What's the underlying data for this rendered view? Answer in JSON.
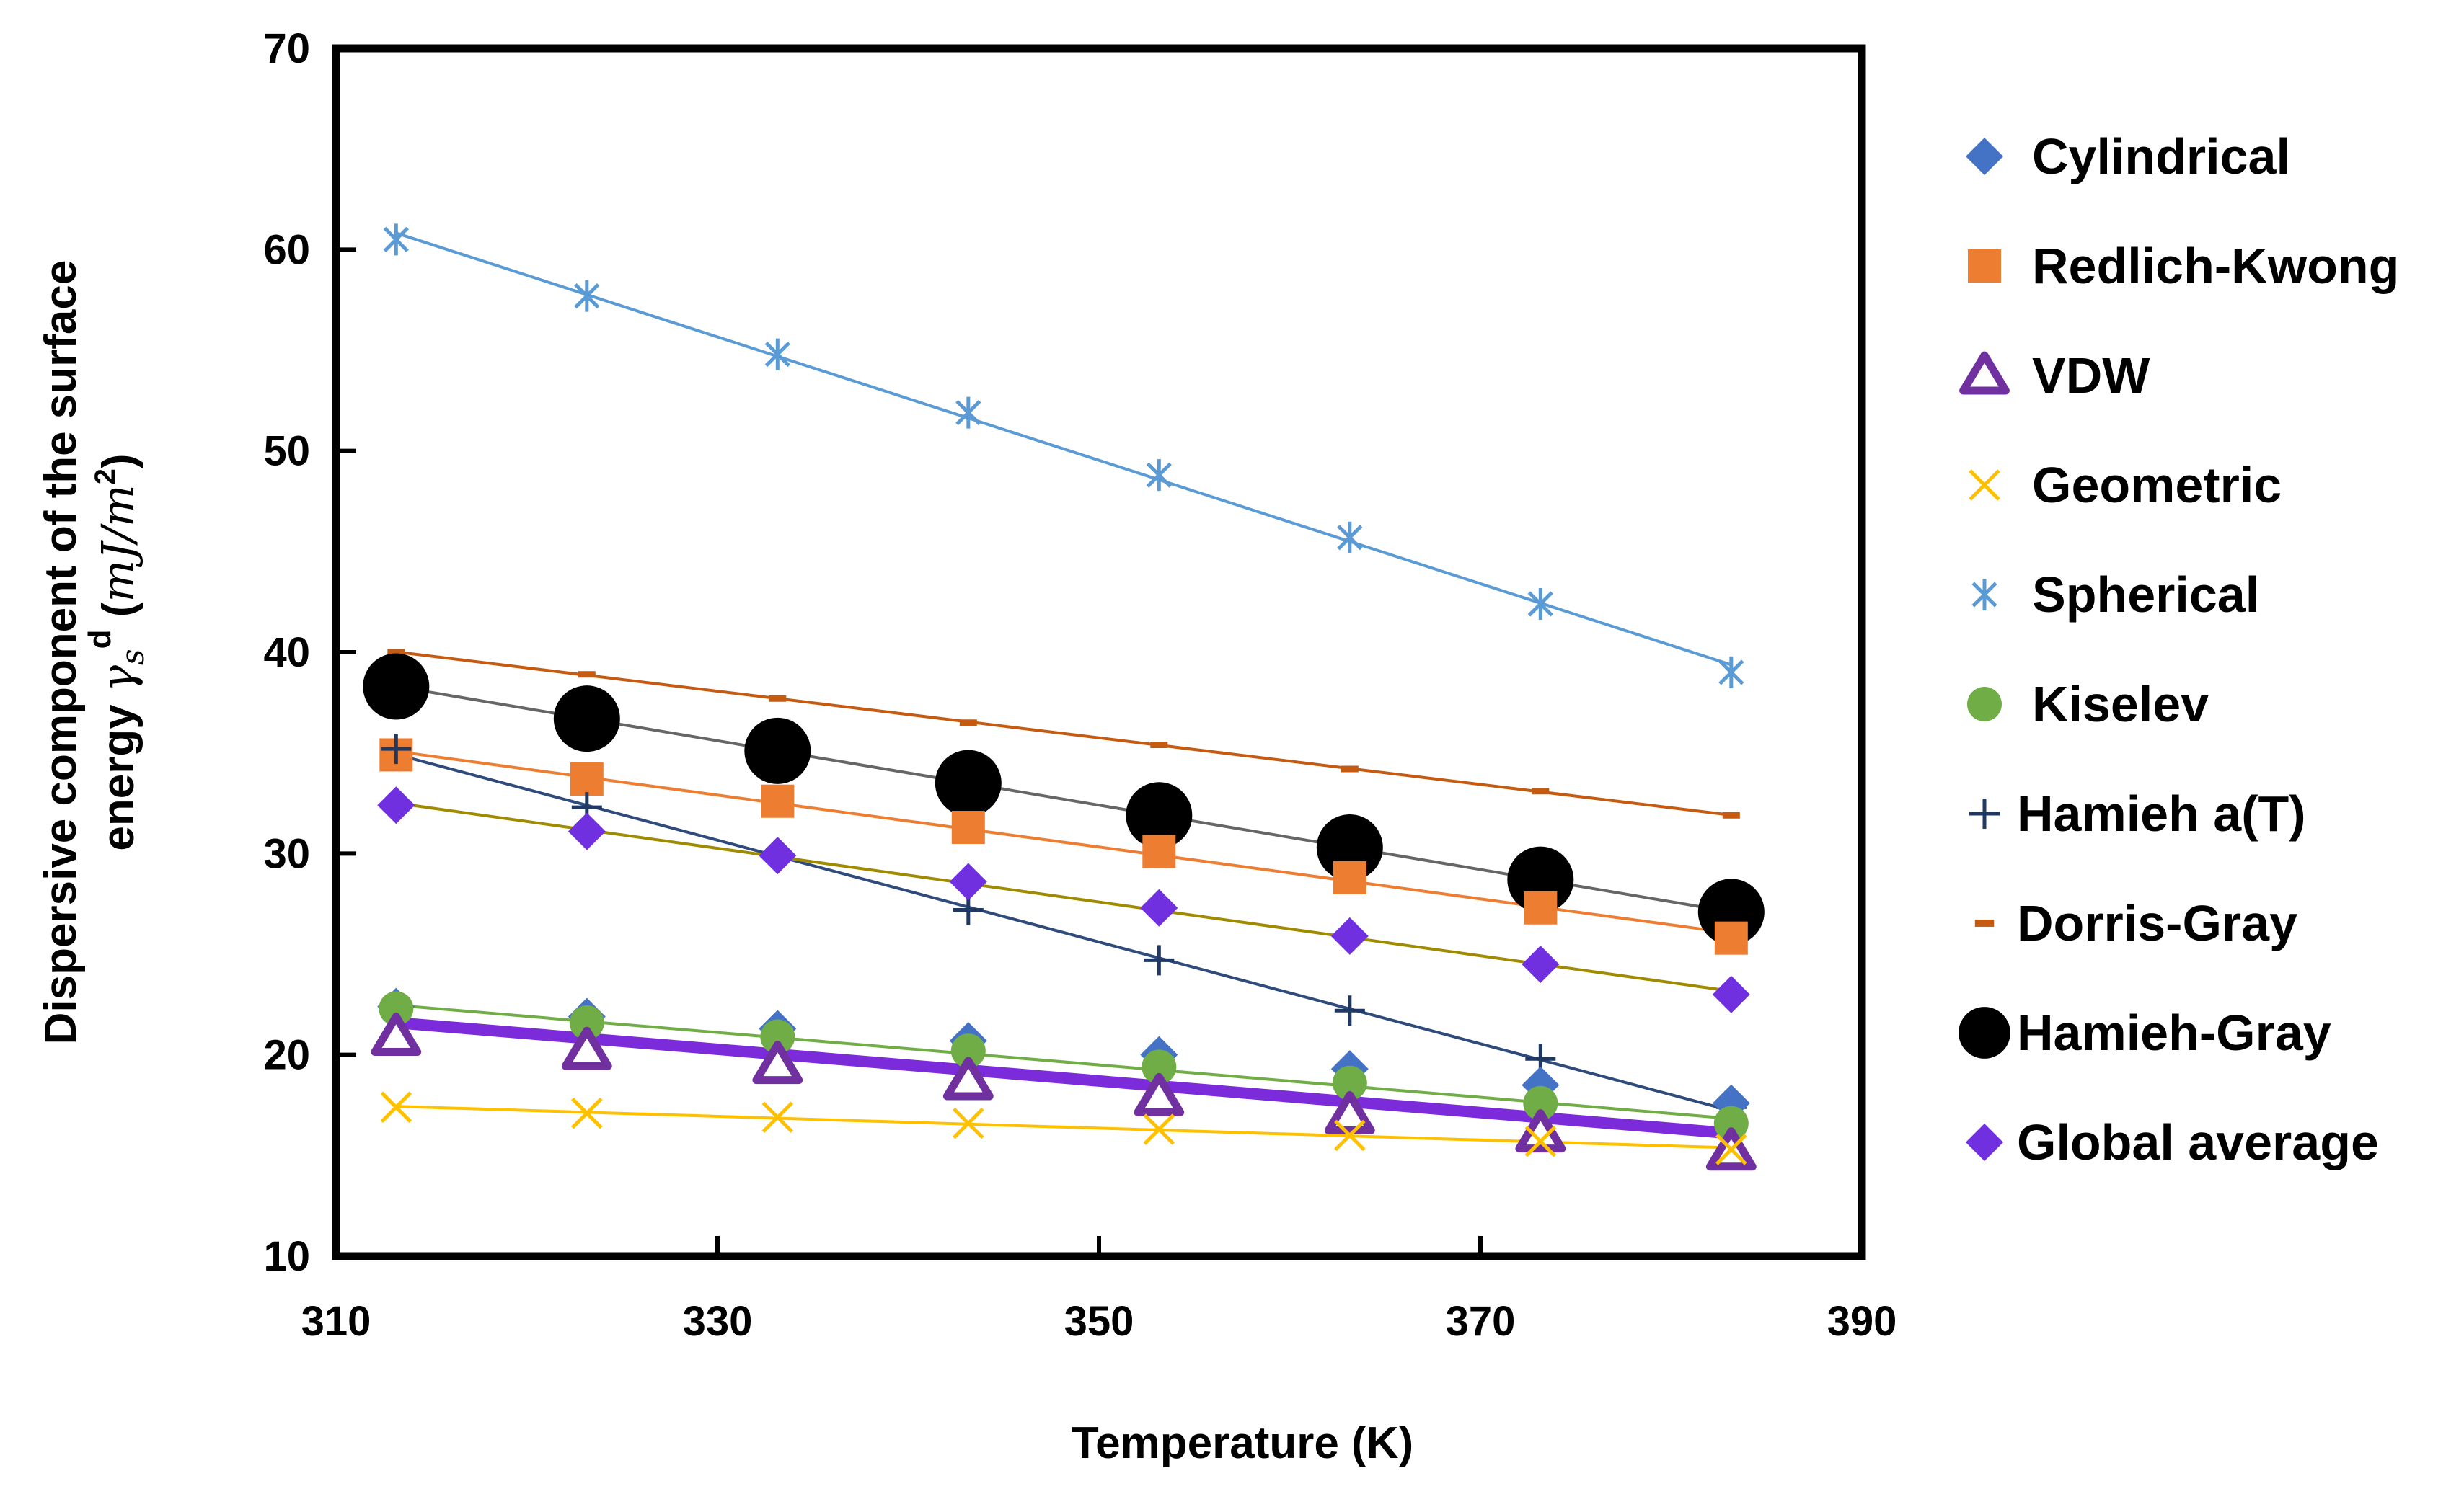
{
  "chart_data": {
    "type": "scatter",
    "xlabel": "Temperature (K)",
    "ylabel": {
      "line1": "Dispersive component of the surface",
      "line2_prefix": "energy ",
      "gamma": "γ",
      "sub": "s",
      "sup": "d",
      "unit_open": " (",
      "unit": "mJ/m",
      "unit_sup": "2",
      "unit_close": ")"
    },
    "xlim": [
      310,
      390
    ],
    "ylim": [
      10,
      70
    ],
    "xticks": [
      310,
      330,
      350,
      370,
      390
    ],
    "yticks": [
      10,
      20,
      30,
      40,
      50,
      60,
      70
    ],
    "x": [
      313.15,
      323.15,
      333.15,
      343.15,
      353.15,
      363.15,
      373.15,
      383.15
    ],
    "series": [
      {
        "name": "Cylindrical",
        "marker": "diamond",
        "color": "#4472C4",
        "values": [
          22.4,
          21.9,
          21.3,
          20.7,
          20.0,
          19.3,
          18.5,
          17.6
        ]
      },
      {
        "name": "Redlich-Kwong",
        "marker": "square",
        "color": "#ED7D31",
        "values": [
          34.9,
          33.7,
          32.6,
          31.3,
          30.1,
          28.8,
          27.3,
          25.8
        ],
        "trend_color": "#ED7D31"
      },
      {
        "name": "VDW",
        "marker": "triangle",
        "color": "#7030A0",
        "values": [
          20.9,
          20.2,
          19.5,
          18.7,
          17.9,
          17.0,
          16.1,
          15.2
        ],
        "trend_color": "#7B2BD9"
      },
      {
        "name": "Geometric",
        "marker": "x",
        "color": "#FFC000",
        "values": [
          17.4,
          17.1,
          16.9,
          16.6,
          16.3,
          16.0,
          15.7,
          15.3
        ],
        "trend_color": "#FFC000"
      },
      {
        "name": "Spherical",
        "marker": "star",
        "color": "#5B9BD5",
        "values": [
          60.5,
          57.7,
          54.8,
          51.9,
          48.8,
          45.7,
          42.4,
          39.0
        ],
        "trend_color": "#5B9BD5"
      },
      {
        "name": "Kiselev",
        "marker": "circle",
        "color": "#70AD47",
        "values": [
          22.3,
          21.6,
          20.9,
          20.2,
          19.4,
          18.6,
          17.6,
          16.6
        ],
        "trend_color": "#70AD47"
      },
      {
        "name": "Hamieh a(T)",
        "marker": "plus",
        "color": "#203864",
        "values": [
          35.2,
          32.3,
          29.8,
          27.2,
          24.7,
          22.2,
          19.8,
          17.4
        ],
        "trend_color": "#2F4B7C"
      },
      {
        "name": "Dorris-Gray",
        "marker": "dash",
        "color": "#C55A11",
        "values": [
          40.0,
          38.9,
          37.7,
          36.5,
          35.4,
          34.2,
          33.1,
          31.9
        ],
        "trend_color": "#C55A11"
      },
      {
        "name": "Hamieh-Gray",
        "marker": "bigcircle",
        "color": "#000000",
        "values": [
          38.3,
          36.7,
          35.1,
          33.5,
          31.9,
          30.3,
          28.7,
          27.1
        ],
        "trend_color": "#666666"
      },
      {
        "name": "Global average",
        "marker": "diamond",
        "color": "#7030E0",
        "values": [
          32.4,
          31.1,
          29.9,
          28.6,
          27.3,
          25.9,
          24.5,
          23.0
        ],
        "trend_color": "#A08A00"
      }
    ]
  }
}
